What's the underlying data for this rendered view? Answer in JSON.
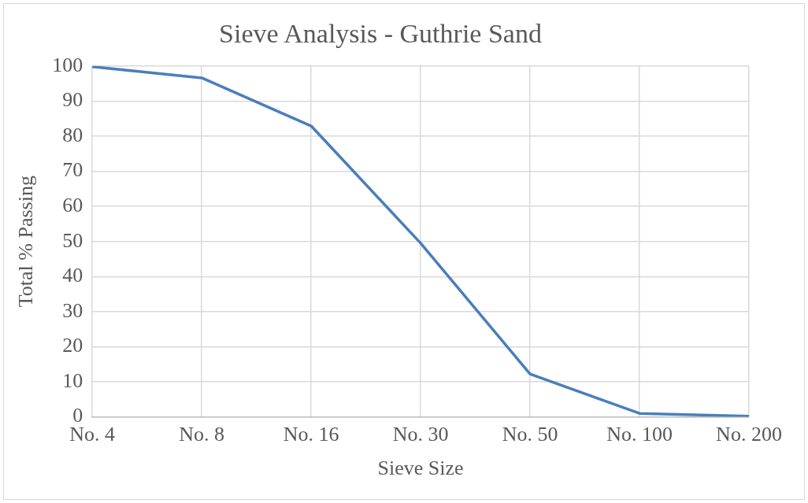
{
  "chart_data": {
    "type": "line",
    "title": "Sieve Analysis - Guthrie Sand",
    "xlabel": "Sieve Size",
    "ylabel": "Total % Passing",
    "categories": [
      "No. 4",
      "No. 8",
      "No. 16",
      "No. 30",
      "No. 50",
      "No. 100",
      "No. 200"
    ],
    "series": [
      {
        "color": "#4a7ebb",
        "values": [
          99.8,
          96.6,
          82.9,
          49.5,
          12.2,
          1.0,
          0.2
        ]
      }
    ],
    "ylim": [
      0,
      100
    ],
    "yticks": [
      0,
      10,
      20,
      30,
      40,
      50,
      60,
      70,
      80,
      90,
      100
    ],
    "grid": true,
    "legend": false,
    "marker": "none",
    "line_style": "solid"
  }
}
